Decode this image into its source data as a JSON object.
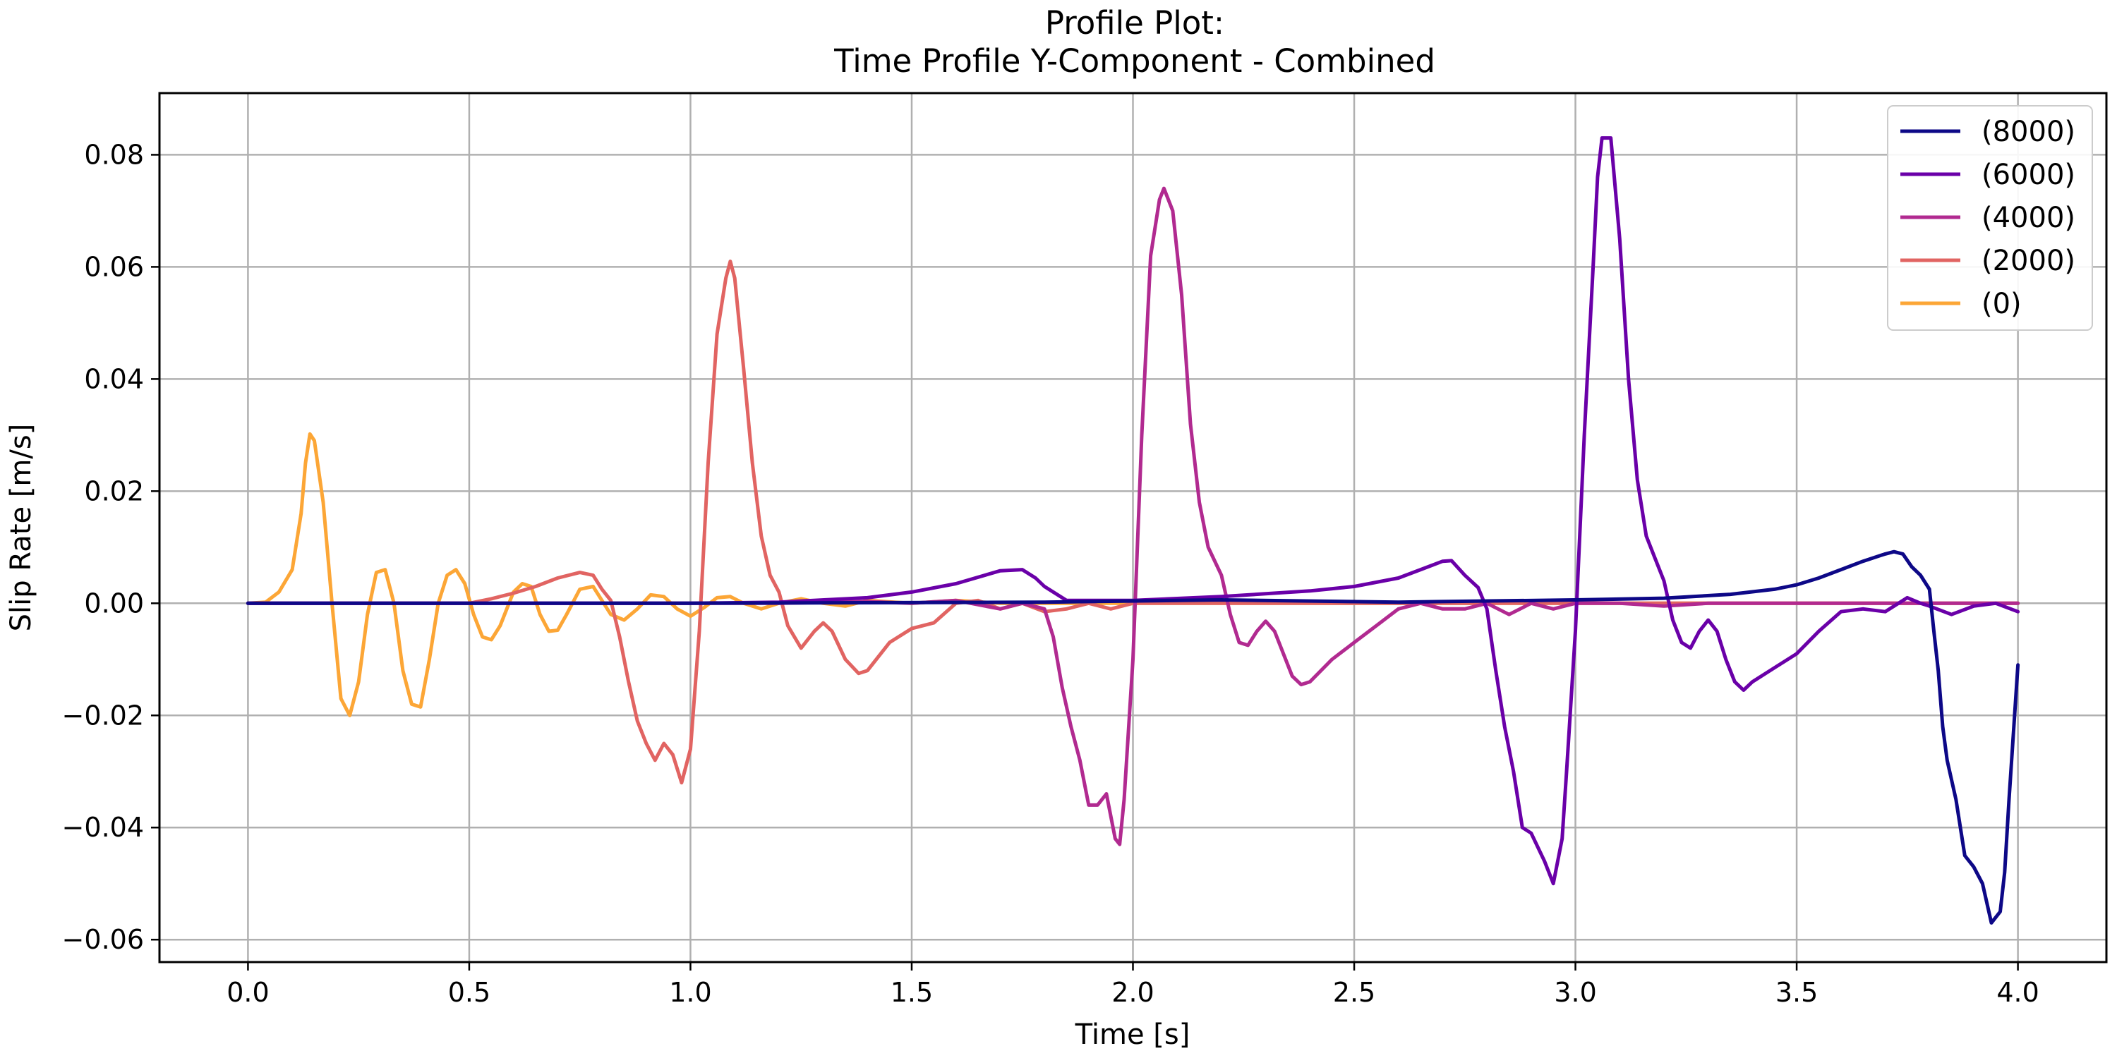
{
  "chart_data": {
    "type": "line",
    "title": "Profile Plot:",
    "subtitle": "Time Profile Y-Component - Combined",
    "xlabel": "Time [s]",
    "ylabel": "Slip Rate [m/s]",
    "xlim": [
      -0.2,
      4.2
    ],
    "ylim": [
      -0.064,
      0.091
    ],
    "xticks": [
      0.0,
      0.5,
      1.0,
      1.5,
      2.0,
      2.5,
      3.0,
      3.5,
      4.0
    ],
    "xtick_labels": [
      "0.0",
      "0.5",
      "1.0",
      "1.5",
      "2.0",
      "2.5",
      "3.0",
      "3.5",
      "4.0"
    ],
    "yticks": [
      -0.06,
      -0.04,
      -0.02,
      0.0,
      0.02,
      0.04,
      0.06,
      0.08
    ],
    "ytick_labels": [
      "−0.06",
      "−0.04",
      "−0.02",
      "0.00",
      "0.02",
      "0.04",
      "0.06",
      "0.08"
    ],
    "grid": true,
    "legend_position": "top-right",
    "series": [
      {
        "name": "(8000)",
        "color": "#0d0887",
        "points": [
          [
            0.0,
            0.0
          ],
          [
            1.0,
            0.0
          ],
          [
            1.8,
            0.0002
          ],
          [
            2.2,
            0.0006
          ],
          [
            2.6,
            0.0002
          ],
          [
            3.0,
            0.0006
          ],
          [
            3.2,
            0.0009
          ],
          [
            3.35,
            0.0016
          ],
          [
            3.45,
            0.0025
          ],
          [
            3.5,
            0.0033
          ],
          [
            3.55,
            0.0045
          ],
          [
            3.6,
            0.006
          ],
          [
            3.65,
            0.0075
          ],
          [
            3.7,
            0.0088
          ],
          [
            3.72,
            0.0092
          ],
          [
            3.74,
            0.0088
          ],
          [
            3.76,
            0.0065
          ],
          [
            3.78,
            0.005
          ],
          [
            3.8,
            0.0025
          ],
          [
            3.81,
            -0.005
          ],
          [
            3.82,
            -0.012
          ],
          [
            3.83,
            -0.022
          ],
          [
            3.84,
            -0.028
          ],
          [
            3.86,
            -0.035
          ],
          [
            3.88,
            -0.045
          ],
          [
            3.9,
            -0.047
          ],
          [
            3.92,
            -0.05
          ],
          [
            3.94,
            -0.057
          ],
          [
            3.96,
            -0.055
          ],
          [
            3.97,
            -0.048
          ],
          [
            3.98,
            -0.035
          ],
          [
            4.0,
            -0.011
          ]
        ]
      },
      {
        "name": "(6000)",
        "color": "#6a00a8",
        "points": [
          [
            0.0,
            0.0
          ],
          [
            1.0,
            0.0
          ],
          [
            1.2,
            0.0002
          ],
          [
            1.4,
            0.001
          ],
          [
            1.5,
            0.002
          ],
          [
            1.6,
            0.0035
          ],
          [
            1.7,
            0.0058
          ],
          [
            1.75,
            0.006
          ],
          [
            1.78,
            0.0045
          ],
          [
            1.8,
            0.003
          ],
          [
            1.85,
            0.0005
          ],
          [
            2.0,
            0.0005
          ],
          [
            2.2,
            0.0012
          ],
          [
            2.4,
            0.0022
          ],
          [
            2.5,
            0.003
          ],
          [
            2.6,
            0.0045
          ],
          [
            2.65,
            0.006
          ],
          [
            2.7,
            0.0075
          ],
          [
            2.72,
            0.0076
          ],
          [
            2.75,
            0.005
          ],
          [
            2.78,
            0.0028
          ],
          [
            2.8,
            -0.001
          ],
          [
            2.82,
            -0.012
          ],
          [
            2.84,
            -0.022
          ],
          [
            2.86,
            -0.03
          ],
          [
            2.88,
            -0.04
          ],
          [
            2.9,
            -0.041
          ],
          [
            2.93,
            -0.046
          ],
          [
            2.95,
            -0.05
          ],
          [
            2.97,
            -0.042
          ],
          [
            2.98,
            -0.03
          ],
          [
            3.0,
            -0.005
          ],
          [
            3.02,
            0.03
          ],
          [
            3.04,
            0.06
          ],
          [
            3.05,
            0.076
          ],
          [
            3.06,
            0.083
          ],
          [
            3.08,
            0.083
          ],
          [
            3.1,
            0.065
          ],
          [
            3.12,
            0.04
          ],
          [
            3.14,
            0.022
          ],
          [
            3.16,
            0.012
          ],
          [
            3.18,
            0.008
          ],
          [
            3.2,
            0.004
          ],
          [
            3.22,
            -0.003
          ],
          [
            3.24,
            -0.007
          ],
          [
            3.26,
            -0.008
          ],
          [
            3.28,
            -0.005
          ],
          [
            3.3,
            -0.003
          ],
          [
            3.32,
            -0.005
          ],
          [
            3.34,
            -0.01
          ],
          [
            3.36,
            -0.014
          ],
          [
            3.38,
            -0.0155
          ],
          [
            3.4,
            -0.014
          ],
          [
            3.45,
            -0.0115
          ],
          [
            3.5,
            -0.009
          ],
          [
            3.55,
            -0.005
          ],
          [
            3.6,
            -0.0015
          ],
          [
            3.65,
            -0.001
          ],
          [
            3.7,
            -0.0015
          ],
          [
            3.75,
            0.001
          ],
          [
            3.78,
            0.0
          ],
          [
            3.8,
            -0.0005
          ],
          [
            3.85,
            -0.002
          ],
          [
            3.9,
            -0.0005
          ],
          [
            3.95,
            0.0
          ],
          [
            4.0,
            -0.0015
          ]
        ]
      },
      {
        "name": "(4000)",
        "color": "#b12a90",
        "points": [
          [
            0.0,
            0.0
          ],
          [
            0.8,
            0.0
          ],
          [
            1.0,
            0.0
          ],
          [
            1.2,
            0.0
          ],
          [
            1.4,
            0.0003
          ],
          [
            1.5,
            0.0
          ],
          [
            1.6,
            0.0005
          ],
          [
            1.7,
            -0.001
          ],
          [
            1.75,
            0.0
          ],
          [
            1.8,
            -0.001
          ],
          [
            1.82,
            -0.006
          ],
          [
            1.84,
            -0.015
          ],
          [
            1.86,
            -0.022
          ],
          [
            1.88,
            -0.028
          ],
          [
            1.9,
            -0.036
          ],
          [
            1.92,
            -0.036
          ],
          [
            1.94,
            -0.034
          ],
          [
            1.96,
            -0.042
          ],
          [
            1.97,
            -0.043
          ],
          [
            1.98,
            -0.035
          ],
          [
            2.0,
            -0.01
          ],
          [
            2.02,
            0.03
          ],
          [
            2.04,
            0.062
          ],
          [
            2.06,
            0.072
          ],
          [
            2.07,
            0.074
          ],
          [
            2.09,
            0.07
          ],
          [
            2.11,
            0.055
          ],
          [
            2.13,
            0.032
          ],
          [
            2.15,
            0.018
          ],
          [
            2.17,
            0.01
          ],
          [
            2.2,
            0.005
          ],
          [
            2.22,
            -0.002
          ],
          [
            2.24,
            -0.007
          ],
          [
            2.26,
            -0.0075
          ],
          [
            2.28,
            -0.005
          ],
          [
            2.3,
            -0.0032
          ],
          [
            2.32,
            -0.005
          ],
          [
            2.34,
            -0.009
          ],
          [
            2.36,
            -0.013
          ],
          [
            2.38,
            -0.0145
          ],
          [
            2.4,
            -0.014
          ],
          [
            2.45,
            -0.01
          ],
          [
            2.5,
            -0.007
          ],
          [
            2.55,
            -0.004
          ],
          [
            2.6,
            -0.001
          ],
          [
            2.65,
            0.0
          ],
          [
            2.7,
            -0.001
          ],
          [
            2.75,
            -0.001
          ],
          [
            2.8,
            0.0
          ],
          [
            2.85,
            -0.002
          ],
          [
            2.9,
            0.0
          ],
          [
            2.95,
            -0.001
          ],
          [
            3.0,
            0.0
          ],
          [
            3.1,
            0.0
          ],
          [
            3.2,
            -0.0005
          ],
          [
            3.3,
            0.0
          ],
          [
            3.4,
            0.0
          ],
          [
            3.5,
            0.0
          ],
          [
            3.6,
            0.0
          ],
          [
            3.7,
            0.0
          ],
          [
            3.8,
            0.0
          ],
          [
            3.9,
            0.0
          ],
          [
            4.0,
            0.0
          ]
        ]
      },
      {
        "name": "(2000)",
        "color": "#e16462",
        "points": [
          [
            0.0,
            0.0
          ],
          [
            0.5,
            0.0
          ],
          [
            0.55,
            0.0008
          ],
          [
            0.6,
            0.0018
          ],
          [
            0.65,
            0.003
          ],
          [
            0.7,
            0.0045
          ],
          [
            0.75,
            0.0055
          ],
          [
            0.78,
            0.005
          ],
          [
            0.8,
            0.0025
          ],
          [
            0.82,
            0.0005
          ],
          [
            0.84,
            -0.006
          ],
          [
            0.86,
            -0.014
          ],
          [
            0.88,
            -0.021
          ],
          [
            0.9,
            -0.025
          ],
          [
            0.92,
            -0.028
          ],
          [
            0.94,
            -0.025
          ],
          [
            0.96,
            -0.027
          ],
          [
            0.98,
            -0.032
          ],
          [
            1.0,
            -0.026
          ],
          [
            1.02,
            -0.005
          ],
          [
            1.04,
            0.025
          ],
          [
            1.06,
            0.048
          ],
          [
            1.08,
            0.058
          ],
          [
            1.09,
            0.061
          ],
          [
            1.1,
            0.058
          ],
          [
            1.12,
            0.042
          ],
          [
            1.14,
            0.025
          ],
          [
            1.16,
            0.012
          ],
          [
            1.18,
            0.005
          ],
          [
            1.2,
            0.002
          ],
          [
            1.22,
            -0.004
          ],
          [
            1.25,
            -0.008
          ],
          [
            1.28,
            -0.005
          ],
          [
            1.3,
            -0.0035
          ],
          [
            1.32,
            -0.005
          ],
          [
            1.35,
            -0.01
          ],
          [
            1.38,
            -0.0125
          ],
          [
            1.4,
            -0.012
          ],
          [
            1.45,
            -0.007
          ],
          [
            1.5,
            -0.0045
          ],
          [
            1.55,
            -0.0035
          ],
          [
            1.6,
            0.0
          ],
          [
            1.65,
            0.0005
          ],
          [
            1.7,
            -0.001
          ],
          [
            1.75,
            0.0
          ],
          [
            1.8,
            -0.0015
          ],
          [
            1.85,
            -0.001
          ],
          [
            1.9,
            0.0
          ],
          [
            1.95,
            -0.001
          ],
          [
            2.0,
            0.0
          ],
          [
            2.1,
            0.0
          ],
          [
            2.2,
            0.0
          ],
          [
            2.3,
            0.0
          ],
          [
            2.4,
            0.0
          ],
          [
            2.5,
            0.0
          ],
          [
            2.6,
            0.0
          ],
          [
            2.8,
            0.0
          ],
          [
            3.0,
            0.0
          ],
          [
            3.2,
            0.0
          ],
          [
            3.4,
            0.0
          ],
          [
            3.6,
            0.0
          ],
          [
            3.8,
            0.0
          ],
          [
            4.0,
            0.0
          ]
        ]
      },
      {
        "name": "(0)",
        "color": "#fca636",
        "points": [
          [
            0.0,
            0.0
          ],
          [
            0.04,
            0.0002
          ],
          [
            0.07,
            0.002
          ],
          [
            0.1,
            0.006
          ],
          [
            0.12,
            0.016
          ],
          [
            0.13,
            0.025
          ],
          [
            0.14,
            0.0302
          ],
          [
            0.15,
            0.029
          ],
          [
            0.17,
            0.018
          ],
          [
            0.19,
            0.0
          ],
          [
            0.21,
            -0.017
          ],
          [
            0.23,
            -0.02
          ],
          [
            0.25,
            -0.014
          ],
          [
            0.27,
            -0.002
          ],
          [
            0.29,
            0.0055
          ],
          [
            0.31,
            0.006
          ],
          [
            0.33,
            0.0
          ],
          [
            0.35,
            -0.012
          ],
          [
            0.37,
            -0.018
          ],
          [
            0.39,
            -0.0185
          ],
          [
            0.41,
            -0.01
          ],
          [
            0.43,
            0.0
          ],
          [
            0.45,
            0.005
          ],
          [
            0.47,
            0.006
          ],
          [
            0.49,
            0.0035
          ],
          [
            0.51,
            -0.002
          ],
          [
            0.53,
            -0.006
          ],
          [
            0.55,
            -0.0065
          ],
          [
            0.57,
            -0.004
          ],
          [
            0.6,
            0.002
          ],
          [
            0.62,
            0.0035
          ],
          [
            0.64,
            0.003
          ],
          [
            0.66,
            -0.002
          ],
          [
            0.68,
            -0.005
          ],
          [
            0.7,
            -0.0048
          ],
          [
            0.72,
            -0.002
          ],
          [
            0.75,
            0.0025
          ],
          [
            0.78,
            0.003
          ],
          [
            0.8,
            0.0005
          ],
          [
            0.82,
            -0.002
          ],
          [
            0.85,
            -0.003
          ],
          [
            0.88,
            -0.001
          ],
          [
            0.91,
            0.0015
          ],
          [
            0.94,
            0.0012
          ],
          [
            0.97,
            -0.001
          ],
          [
            1.0,
            -0.0023
          ],
          [
            1.03,
            -0.0008
          ],
          [
            1.06,
            0.001
          ],
          [
            1.09,
            0.0012
          ],
          [
            1.12,
            0.0
          ],
          [
            1.16,
            -0.001
          ],
          [
            1.2,
            0.0
          ],
          [
            1.25,
            0.0008
          ],
          [
            1.3,
            0.0
          ],
          [
            1.35,
            -0.0005
          ],
          [
            1.4,
            0.0005
          ],
          [
            1.5,
            0.0
          ],
          [
            1.6,
            0.0005
          ],
          [
            1.7,
            0.0
          ],
          [
            1.8,
            0.0
          ],
          [
            1.9,
            0.0
          ],
          [
            2.0,
            0.0
          ],
          [
            2.2,
            0.0
          ],
          [
            2.4,
            0.0
          ],
          [
            2.6,
            0.0
          ],
          [
            2.8,
            0.0
          ],
          [
            3.0,
            0.0
          ],
          [
            3.2,
            0.0
          ],
          [
            3.4,
            0.0
          ],
          [
            3.6,
            0.0
          ],
          [
            3.8,
            0.0
          ],
          [
            4.0,
            0.0
          ]
        ]
      }
    ]
  }
}
